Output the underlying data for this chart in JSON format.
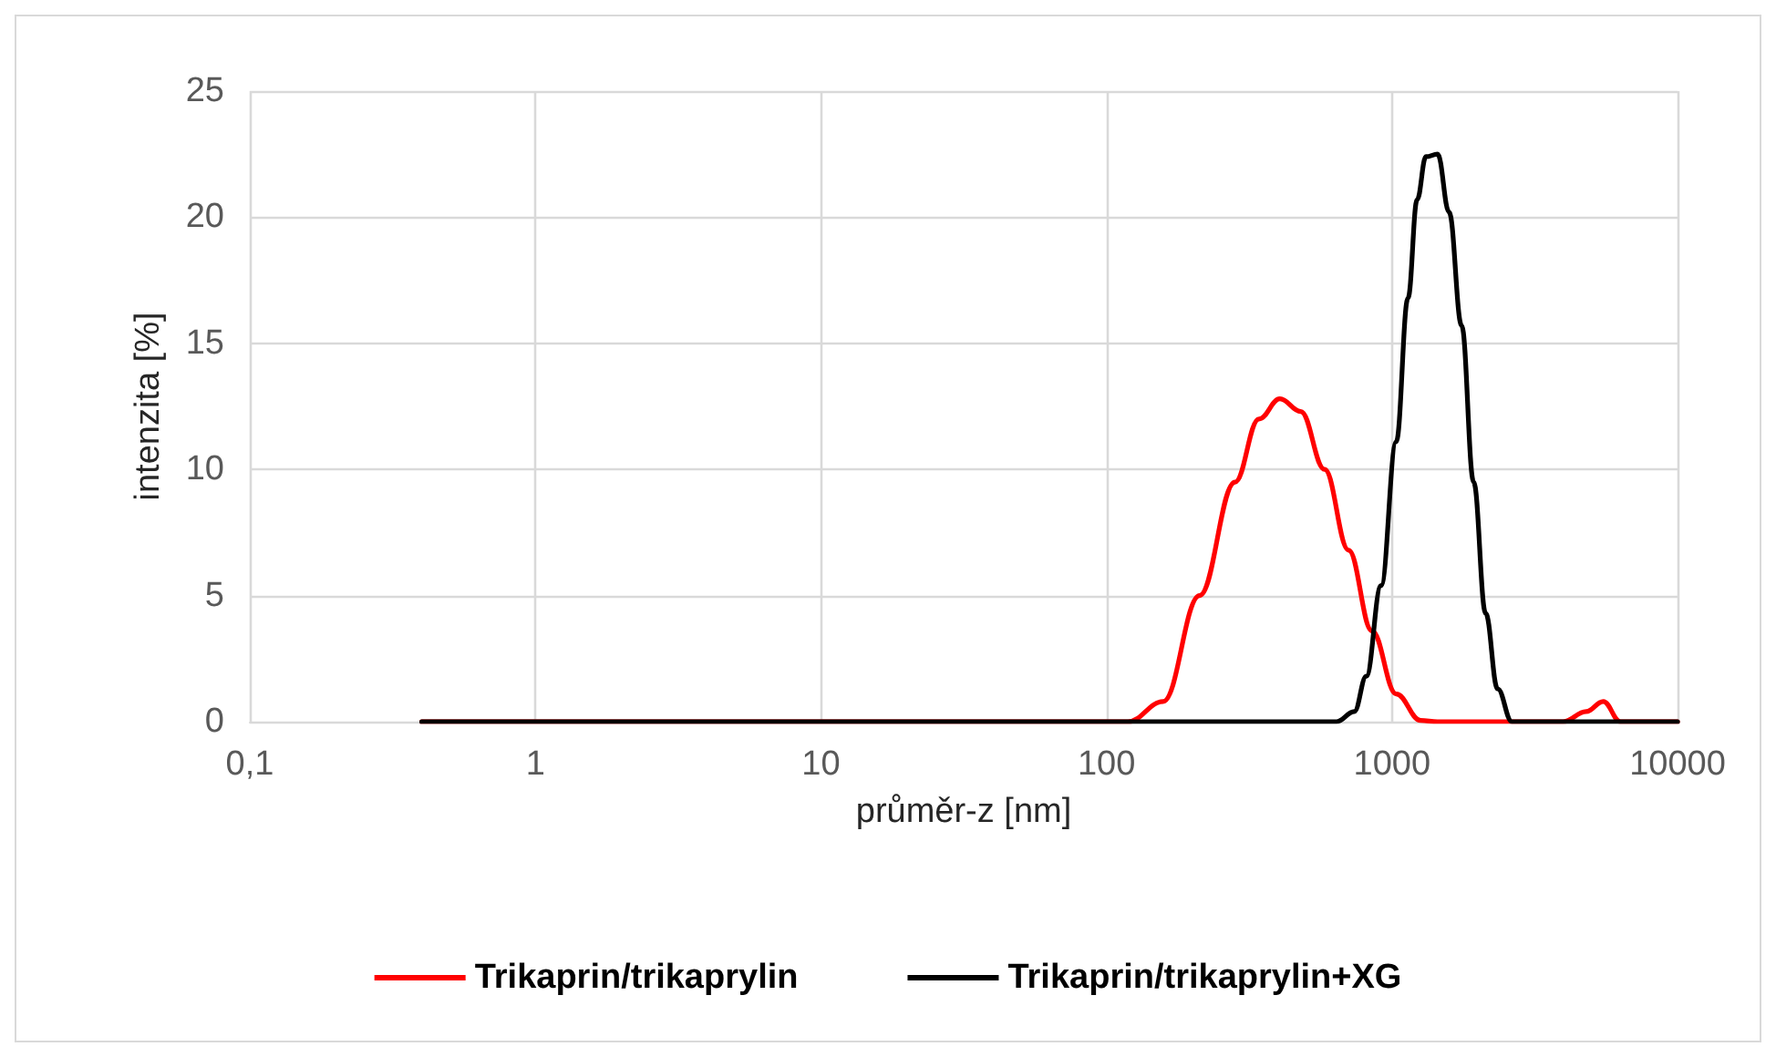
{
  "chart_data": {
    "type": "line",
    "xlabel": "průměr-z [nm]",
    "ylabel": "intenzita [%]",
    "log": "x",
    "xlim": [
      0.1,
      10000
    ],
    "xticks": [
      {
        "value": 0.1,
        "label": "0,1"
      },
      1,
      10,
      100,
      1000,
      10000
    ],
    "ylim": [
      0,
      25
    ],
    "yticks": [
      0,
      5,
      10,
      15,
      20,
      25
    ],
    "grid": true,
    "legend": "bottom",
    "marker": "none",
    "line_style": "solid",
    "series": [
      {
        "name": "Trikaprin/trikaprylin",
        "color": "#ff0000",
        "x": [
          0.4,
          119,
          158,
          212,
          282,
          342,
          405,
          479,
          581,
          705,
          851,
          1035,
          1259,
          1445,
          3981,
          4786,
          5495,
          6310,
          10000
        ],
        "values": [
          0,
          0,
          0.8,
          5,
          9.5,
          12,
          12.8,
          12.3,
          10,
          6.8,
          3.6,
          1.1,
          0.05,
          0,
          0,
          0.4,
          0.8,
          0,
          0
        ]
      },
      {
        "name": "Trikaprin/trikaprylin+XG",
        "color": "#000000",
        "x": [
          0.4,
          640,
          738,
          813,
          916,
          1035,
          1138,
          1225,
          1315,
          1445,
          1585,
          1754,
          1932,
          2128,
          2344,
          2630,
          10000
        ],
        "values": [
          0,
          0,
          0.4,
          1.8,
          5.4,
          11.1,
          16.8,
          20.7,
          22.4,
          22.5,
          20.2,
          15.7,
          9.5,
          4.3,
          1.3,
          0,
          0
        ]
      }
    ]
  }
}
